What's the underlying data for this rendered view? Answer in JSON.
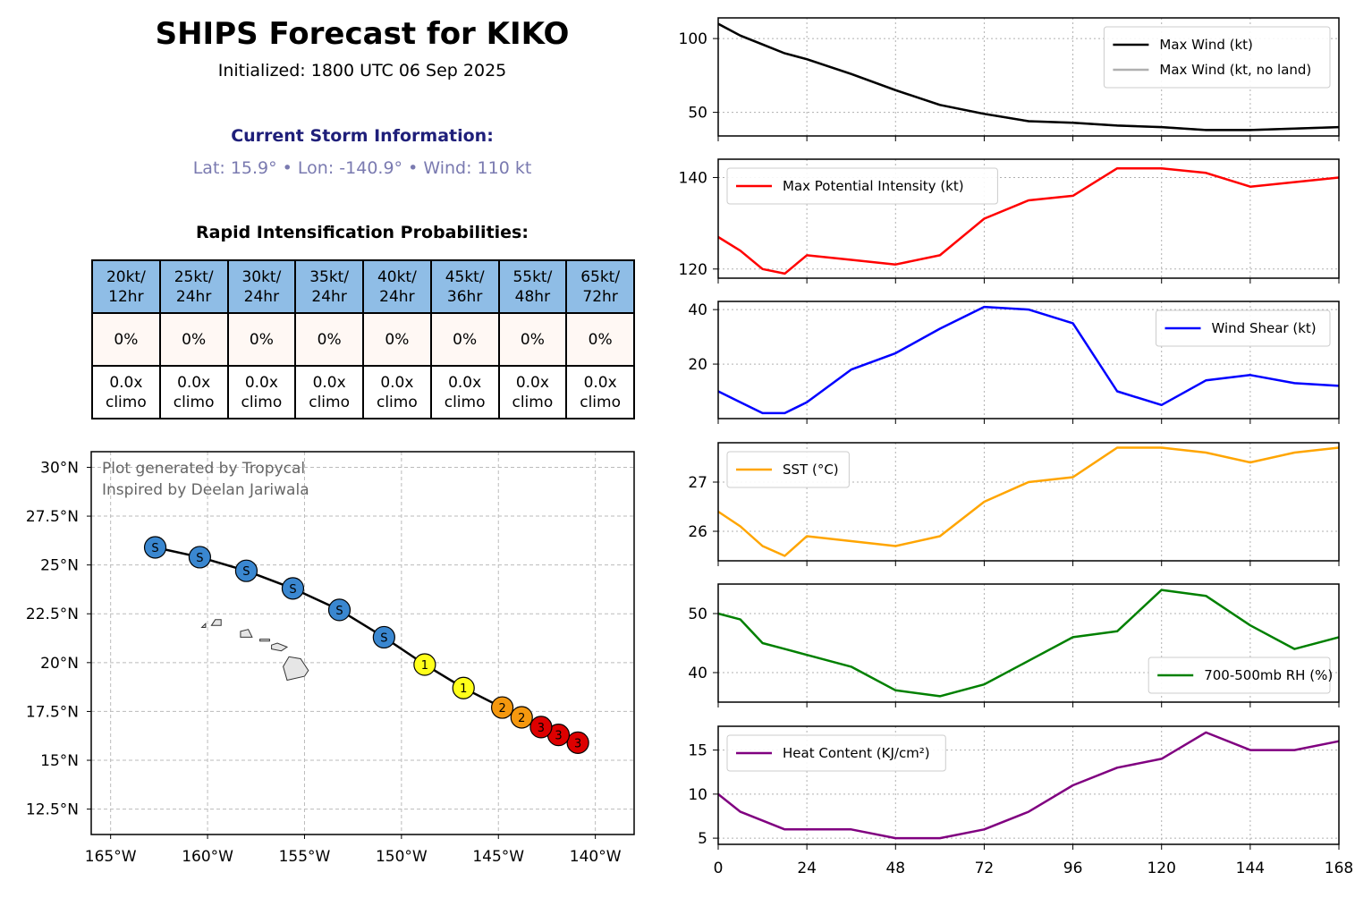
{
  "header": {
    "title": "SHIPS Forecast for KIKO",
    "initialized": "Initialized: 1800 UTC 06 Sep 2025",
    "storm_heading": "Current Storm Information:",
    "storm_info": "Lat: 15.9° • Lon: -140.9° • Wind: 110 kt",
    "ri_heading": "Rapid Intensification Probabilities:"
  },
  "ri_table": {
    "headers": [
      [
        "20kt/",
        "12hr"
      ],
      [
        "25kt/",
        "24hr"
      ],
      [
        "30kt/",
        "24hr"
      ],
      [
        "35kt/",
        "24hr"
      ],
      [
        "40kt/",
        "24hr"
      ],
      [
        "45kt/",
        "36hr"
      ],
      [
        "55kt/",
        "48hr"
      ],
      [
        "65kt/",
        "72hr"
      ]
    ],
    "probabilities": [
      "0%",
      "0%",
      "0%",
      "0%",
      "0%",
      "0%",
      "0%",
      "0%"
    ],
    "climo": [
      [
        "0.0x",
        "climo"
      ],
      [
        "0.0x",
        "climo"
      ],
      [
        "0.0x",
        "climo"
      ],
      [
        "0.0x",
        "climo"
      ],
      [
        "0.0x",
        "climo"
      ],
      [
        "0.0x",
        "climo"
      ],
      [
        "0.0x",
        "climo"
      ],
      [
        "0.0x",
        "climo"
      ]
    ]
  },
  "map": {
    "credit_lines": [
      "Plot generated by Tropycal",
      "Inspired by Deelan Jariwala"
    ],
    "lon_range": [
      -166,
      -138
    ],
    "lat_range": [
      11.2,
      30.8
    ],
    "lon_ticks": [
      -165,
      -160,
      -155,
      -150,
      -145,
      -140
    ],
    "lon_tick_labels": [
      "165°W",
      "160°W",
      "155°W",
      "150°W",
      "145°W",
      "140°W"
    ],
    "lat_ticks": [
      12.5,
      15,
      17.5,
      20,
      22.5,
      25,
      27.5,
      30
    ],
    "lat_tick_labels": [
      "12.5°N",
      "15°N",
      "17.5°N",
      "20°N",
      "22.5°N",
      "25°N",
      "27.5°N",
      "30°N"
    ],
    "category_colors": {
      "S": "#3a87d0",
      "1": "#ffff1a",
      "2": "#f5980f",
      "3": "#dd0000"
    },
    "track": [
      {
        "lon": -140.9,
        "lat": 15.9,
        "cat": "3"
      },
      {
        "lon": -141.9,
        "lat": 16.3,
        "cat": "3"
      },
      {
        "lon": -142.8,
        "lat": 16.7,
        "cat": "3"
      },
      {
        "lon": -143.8,
        "lat": 17.2,
        "cat": "2"
      },
      {
        "lon": -144.8,
        "lat": 17.7,
        "cat": "2"
      },
      {
        "lon": -146.8,
        "lat": 18.7,
        "cat": "1"
      },
      {
        "lon": -148.8,
        "lat": 19.9,
        "cat": "1"
      },
      {
        "lon": -150.9,
        "lat": 21.3,
        "cat": "S"
      },
      {
        "lon": -153.2,
        "lat": 22.7,
        "cat": "S"
      },
      {
        "lon": -155.6,
        "lat": 23.8,
        "cat": "S"
      },
      {
        "lon": -158.0,
        "lat": 24.7,
        "cat": "S"
      },
      {
        "lon": -160.4,
        "lat": 25.4,
        "cat": "S"
      },
      {
        "lon": -162.7,
        "lat": 25.9,
        "cat": "S"
      }
    ]
  },
  "chart_data": [
    {
      "type": "line",
      "x": [
        0,
        6,
        12,
        18,
        24,
        36,
        48,
        60,
        72,
        84,
        96,
        108,
        120,
        132,
        144,
        156,
        168
      ],
      "series": [
        {
          "name": "Max Wind (kt)",
          "color": "#000000",
          "values": [
            110,
            102,
            96,
            90,
            86,
            76,
            65,
            55,
            49,
            44,
            43,
            41,
            40,
            38,
            38,
            39,
            40
          ]
        },
        {
          "name": "Max Wind (kt, no land)",
          "color": "#b0b0b0",
          "values": [
            110,
            102,
            96,
            90,
            86,
            76,
            65,
            55,
            49,
            44,
            43,
            41,
            40,
            38,
            38,
            39,
            40
          ]
        }
      ],
      "ylim": [
        34,
        114
      ],
      "yticks": [
        50,
        100
      ],
      "legend": "upper right"
    },
    {
      "type": "line",
      "x": [
        0,
        6,
        12,
        18,
        24,
        36,
        48,
        60,
        72,
        84,
        96,
        108,
        120,
        132,
        144,
        156,
        168
      ],
      "series": [
        {
          "name": "Max Potential Intensity (kt)",
          "color": "#ff0000",
          "values": [
            127,
            124,
            120,
            119,
            123,
            122,
            121,
            123,
            131,
            135,
            136,
            142,
            142,
            141,
            138,
            139,
            140
          ]
        }
      ],
      "ylim": [
        118,
        144
      ],
      "yticks": [
        120,
        140
      ],
      "legend": "upper left"
    },
    {
      "type": "line",
      "x": [
        0,
        6,
        12,
        18,
        24,
        36,
        48,
        60,
        72,
        84,
        96,
        108,
        120,
        132,
        144,
        156,
        168
      ],
      "series": [
        {
          "name": "Wind Shear (kt)",
          "color": "#0000ff",
          "values": [
            10,
            6,
            2,
            2,
            6,
            18,
            24,
            33,
            41,
            40,
            35,
            10,
            5,
            14,
            16,
            13,
            12
          ]
        }
      ],
      "ylim": [
        0,
        43
      ],
      "yticks": [
        20,
        40
      ],
      "legend": "upper right"
    },
    {
      "type": "line",
      "x": [
        0,
        6,
        12,
        18,
        24,
        36,
        48,
        60,
        72,
        84,
        96,
        108,
        120,
        132,
        144,
        156,
        168
      ],
      "series": [
        {
          "name": "SST (°C)",
          "color": "#ffa500",
          "values": [
            26.4,
            26.1,
            25.7,
            25.5,
            25.9,
            25.8,
            25.7,
            25.9,
            26.6,
            27.0,
            27.1,
            27.7,
            27.7,
            27.6,
            27.4,
            27.6,
            27.7
          ]
        }
      ],
      "ylim": [
        25.4,
        27.8
      ],
      "yticks": [
        26,
        27
      ],
      "legend": "upper left"
    },
    {
      "type": "line",
      "x": [
        0,
        6,
        12,
        18,
        24,
        36,
        48,
        60,
        72,
        84,
        96,
        108,
        120,
        132,
        144,
        156,
        168
      ],
      "series": [
        {
          "name": "700-500mb RH (%)",
          "color": "#008000",
          "values": [
            50,
            49,
            45,
            44,
            43,
            41,
            37,
            36,
            38,
            42,
            46,
            47,
            54,
            53,
            48,
            44,
            46
          ]
        }
      ],
      "ylim": [
        35,
        55
      ],
      "yticks": [
        40,
        50
      ],
      "legend": "lower right"
    },
    {
      "type": "line",
      "x": [
        0,
        6,
        12,
        18,
        24,
        36,
        48,
        60,
        72,
        84,
        96,
        108,
        120,
        132,
        144,
        156,
        168
      ],
      "series": [
        {
          "name": "Heat Content (KJ/cm²)",
          "color": "#800080",
          "values": [
            10,
            8,
            7,
            6,
            6,
            6,
            5,
            5,
            6,
            8,
            11,
            13,
            14,
            17,
            15,
            15,
            16
          ]
        }
      ],
      "ylim": [
        4.3,
        17.7
      ],
      "yticks": [
        5,
        10,
        15
      ],
      "legend": "upper left"
    }
  ],
  "x_axis": {
    "ticks": [
      0,
      24,
      48,
      72,
      96,
      120,
      144,
      168
    ],
    "labels": [
      "0",
      "24",
      "48",
      "72",
      "96",
      "120",
      "144",
      "168"
    ],
    "xlim": [
      0,
      168
    ]
  }
}
